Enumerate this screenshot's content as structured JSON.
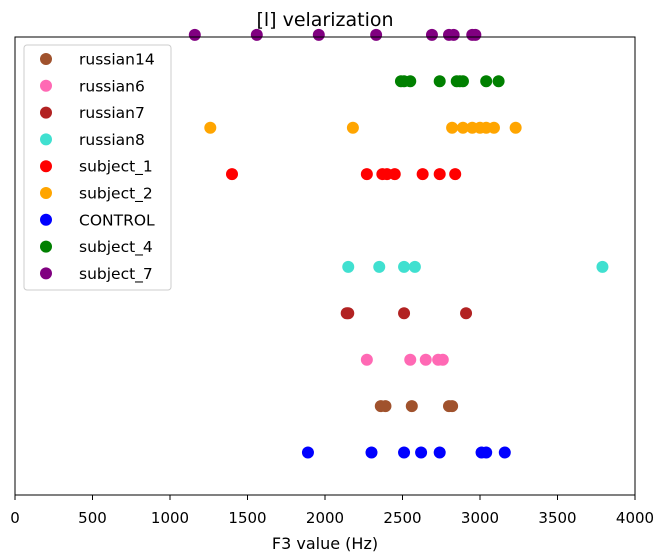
{
  "chart_data": {
    "type": "scatter",
    "title": "[l] velarization",
    "xlabel": "F3 value (Hz)",
    "ylabel": "",
    "xlim": [
      0,
      4000
    ],
    "xticks": [
      0,
      500,
      1000,
      1500,
      2000,
      2500,
      3000,
      3500,
      4000
    ],
    "y_ticks_visible": false,
    "grid": false,
    "legend_position": "upper-left",
    "series": [
      {
        "name": "russian14",
        "color": "#a0522d",
        "row": 1,
        "values": [
          2360,
          2390,
          2560,
          2800,
          2820
        ]
      },
      {
        "name": "russian6",
        "color": "#ff69b4",
        "row": 2,
        "values": [
          2270,
          2550,
          2650,
          2730,
          2760
        ]
      },
      {
        "name": "russian7",
        "color": "#b22222",
        "row": 3,
        "values": [
          2140,
          2150,
          2510,
          2910
        ]
      },
      {
        "name": "russian8",
        "color": "#40e0d0",
        "row": 4,
        "values": [
          2150,
          2350,
          2510,
          2580,
          3790
        ]
      },
      {
        "name": "subject_1",
        "color": "#ff0000",
        "row": 6,
        "values": [
          1400,
          2270,
          2370,
          2400,
          2450,
          2630,
          2740,
          2840
        ]
      },
      {
        "name": "subject_2",
        "color": "#ffa500",
        "row": 7,
        "values": [
          1260,
          2180,
          2820,
          2890,
          2950,
          3000,
          3040,
          3090,
          3230
        ]
      },
      {
        "name": "CONTROL",
        "color": "#0000ff",
        "row": 0,
        "values": [
          1890,
          2300,
          2510,
          2620,
          2740,
          3010,
          3040,
          3160
        ]
      },
      {
        "name": "subject_4",
        "color": "#008000",
        "row": 8,
        "values": [
          2490,
          2510,
          2550,
          2740,
          2850,
          2870,
          2890,
          3040,
          3120
        ]
      },
      {
        "name": "subject_7",
        "color": "#800080",
        "row": 9,
        "values": [
          1160,
          1560,
          1960,
          2330,
          2690,
          2800,
          2830,
          2950,
          2970
        ]
      }
    ]
  }
}
